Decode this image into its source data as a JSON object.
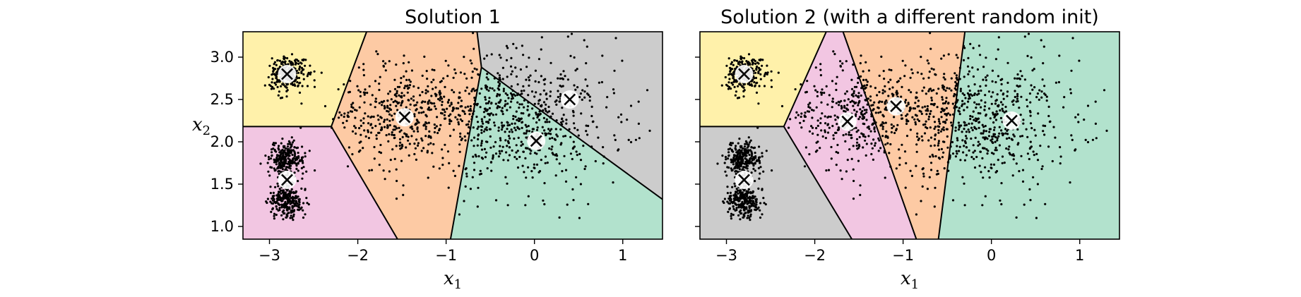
{
  "chart_data": [
    {
      "type": "scatter",
      "title": "Solution 1",
      "xlabel": "x",
      "xlabel_sub": "1",
      "ylabel": "x",
      "ylabel_sub": "2",
      "xlim": [
        -3.3,
        1.45
      ],
      "ylim": [
        0.85,
        3.3
      ],
      "xticks": [
        -3,
        -2,
        -1,
        0,
        1
      ],
      "xtick_labels": [
        "−3",
        "−2",
        "−1",
        "0",
        "1"
      ],
      "yticks": [
        1.0,
        1.5,
        2.0,
        2.5,
        3.0
      ],
      "ytick_labels": [
        "1.0",
        "1.5",
        "2.0",
        "2.5",
        "3.0"
      ],
      "grid": false,
      "background": "decision regions",
      "regions": [
        {
          "color": "#fff1aa",
          "polygon": [
            [
              -3.3,
              3.3
            ],
            [
              -1.9,
              3.3
            ],
            [
              -2.3,
              2.18
            ],
            [
              -3.3,
              2.18
            ]
          ]
        },
        {
          "color": "#f2c6e2",
          "polygon": [
            [
              -3.3,
              2.18
            ],
            [
              -2.3,
              2.18
            ],
            [
              -1.55,
              0.85
            ],
            [
              -3.3,
              0.85
            ]
          ]
        },
        {
          "color": "#fdcaa4",
          "polygon": [
            [
              -1.9,
              3.3
            ],
            [
              -0.65,
              3.3
            ],
            [
              -0.6,
              2.88
            ],
            [
              -0.95,
              0.85
            ],
            [
              -1.55,
              0.85
            ],
            [
              -2.3,
              2.18
            ]
          ]
        },
        {
          "color": "#cccccc",
          "polygon": [
            [
              -0.65,
              3.3
            ],
            [
              1.45,
              3.3
            ],
            [
              1.45,
              1.32
            ],
            [
              -0.6,
              2.88
            ]
          ]
        },
        {
          "color": "#b2e2cd",
          "polygon": [
            [
              -0.6,
              2.88
            ],
            [
              1.45,
              1.32
            ],
            [
              1.45,
              0.85
            ],
            [
              -0.95,
              0.85
            ]
          ]
        }
      ],
      "boundaries": [
        [
          [
            -1.9,
            3.3
          ],
          [
            -2.3,
            2.18
          ]
        ],
        [
          [
            -3.3,
            2.18
          ],
          [
            -2.3,
            2.18
          ]
        ],
        [
          [
            -2.3,
            2.18
          ],
          [
            -1.55,
            0.85
          ]
        ],
        [
          [
            -0.65,
            3.3
          ],
          [
            -0.6,
            2.88
          ]
        ],
        [
          [
            -0.6,
            2.88
          ],
          [
            -0.95,
            0.85
          ]
        ],
        [
          [
            -0.6,
            2.88
          ],
          [
            1.45,
            1.32
          ]
        ]
      ],
      "clusters": [
        {
          "cx": -2.8,
          "cy": 2.8,
          "sx": 0.1,
          "sy": 0.1,
          "n": 260
        },
        {
          "cx": -2.8,
          "cy": 1.8,
          "sx": 0.1,
          "sy": 0.1,
          "n": 260
        },
        {
          "cx": -2.8,
          "cy": 1.3,
          "sx": 0.1,
          "sy": 0.1,
          "n": 260
        },
        {
          "cx": -1.5,
          "cy": 2.3,
          "sx": 0.4,
          "sy": 0.3,
          "n": 420
        },
        {
          "cx": -0.2,
          "cy": 2.3,
          "sx": 0.55,
          "sy": 0.38,
          "n": 700
        }
      ],
      "centroids": [
        {
          "x": -2.8,
          "y": 2.8
        },
        {
          "x": -2.8,
          "y": 1.55
        },
        {
          "x": -1.47,
          "y": 2.29
        },
        {
          "x": 0.02,
          "y": 2.01
        },
        {
          "x": 0.4,
          "y": 2.5
        }
      ]
    },
    {
      "type": "scatter",
      "title": "Solution 2 (with a different random init)",
      "xlabel": "x",
      "xlabel_sub": "1",
      "ylabel": "",
      "xlim": [
        -3.3,
        1.45
      ],
      "ylim": [
        0.85,
        3.3
      ],
      "xticks": [
        -3,
        -2,
        -1,
        0,
        1
      ],
      "xtick_labels": [
        "−3",
        "−2",
        "−1",
        "0",
        "1"
      ],
      "yticks": [
        1.0,
        1.5,
        2.0,
        2.5,
        3.0
      ],
      "ytick_labels": [],
      "grid": false,
      "background": "decision regions",
      "regions": [
        {
          "color": "#fff1aa",
          "polygon": [
            [
              -3.3,
              3.3
            ],
            [
              -1.87,
              3.3
            ],
            [
              -2.35,
              2.18
            ],
            [
              -3.3,
              2.18
            ]
          ]
        },
        {
          "color": "#cccccc",
          "polygon": [
            [
              -3.3,
              2.18
            ],
            [
              -2.35,
              2.18
            ],
            [
              -1.58,
              0.85
            ],
            [
              -3.3,
              0.85
            ]
          ]
        },
        {
          "color": "#f2c6e2",
          "polygon": [
            [
              -1.87,
              3.3
            ],
            [
              -1.68,
              3.3
            ],
            [
              -0.85,
              0.85
            ],
            [
              -1.58,
              0.85
            ],
            [
              -2.35,
              2.18
            ]
          ]
        },
        {
          "color": "#fdcaa4",
          "polygon": [
            [
              -1.68,
              3.3
            ],
            [
              -0.3,
              3.3
            ],
            [
              -0.6,
              0.85
            ],
            [
              -0.85,
              0.85
            ]
          ]
        },
        {
          "color": "#b2e2cd",
          "polygon": [
            [
              -0.3,
              3.3
            ],
            [
              1.45,
              3.3
            ],
            [
              1.45,
              0.85
            ],
            [
              -0.6,
              0.85
            ]
          ]
        }
      ],
      "boundaries": [
        [
          [
            -1.87,
            3.3
          ],
          [
            -2.35,
            2.18
          ]
        ],
        [
          [
            -3.3,
            2.18
          ],
          [
            -2.35,
            2.18
          ]
        ],
        [
          [
            -2.35,
            2.18
          ],
          [
            -1.58,
            0.85
          ]
        ],
        [
          [
            -1.68,
            3.3
          ],
          [
            -0.85,
            0.85
          ]
        ],
        [
          [
            -0.3,
            3.3
          ],
          [
            -0.6,
            0.85
          ]
        ]
      ],
      "clusters": [
        {
          "cx": -2.8,
          "cy": 2.8,
          "sx": 0.1,
          "sy": 0.1,
          "n": 260
        },
        {
          "cx": -2.8,
          "cy": 1.8,
          "sx": 0.1,
          "sy": 0.1,
          "n": 260
        },
        {
          "cx": -2.8,
          "cy": 1.3,
          "sx": 0.1,
          "sy": 0.1,
          "n": 260
        },
        {
          "cx": -1.5,
          "cy": 2.3,
          "sx": 0.4,
          "sy": 0.3,
          "n": 420
        },
        {
          "cx": -0.2,
          "cy": 2.3,
          "sx": 0.55,
          "sy": 0.38,
          "n": 700
        }
      ],
      "centroids": [
        {
          "x": -2.8,
          "y": 2.8
        },
        {
          "x": -2.8,
          "y": 1.55
        },
        {
          "x": -1.63,
          "y": 2.24
        },
        {
          "x": -1.08,
          "y": 2.42
        },
        {
          "x": 0.23,
          "y": 2.25
        }
      ]
    }
  ]
}
